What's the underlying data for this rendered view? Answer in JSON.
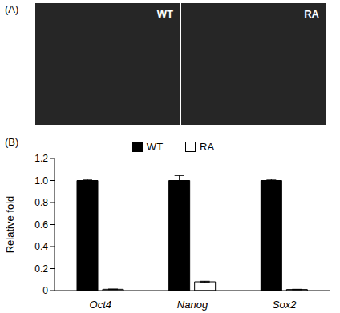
{
  "panel_a": {
    "label": "(A)",
    "image_labels": [
      "WT",
      "RA"
    ]
  },
  "chart_data": {
    "type": "bar",
    "title": "(B)",
    "y_label": "Relative fold",
    "categories": [
      "Oct4",
      "Nanog",
      "Sox2"
    ],
    "series": [
      {
        "name": "WT",
        "color": "#000000",
        "values": [
          1,
          1,
          1
        ],
        "errors": [
          0.01,
          0.045,
          0.01
        ]
      },
      {
        "name": "RA",
        "color": "#ffffff",
        "values": [
          0.012,
          0.08,
          0.01
        ],
        "errors": [
          0.002,
          0.005,
          0.002
        ]
      }
    ],
    "ylim": [
      0,
      1.2
    ],
    "yticks": [
      0,
      0.2,
      0.4,
      0.6,
      0.8,
      {
        "value": 1,
        "label": "1.0"
      },
      1.2
    ],
    "legend": "top",
    "grid": false
  }
}
